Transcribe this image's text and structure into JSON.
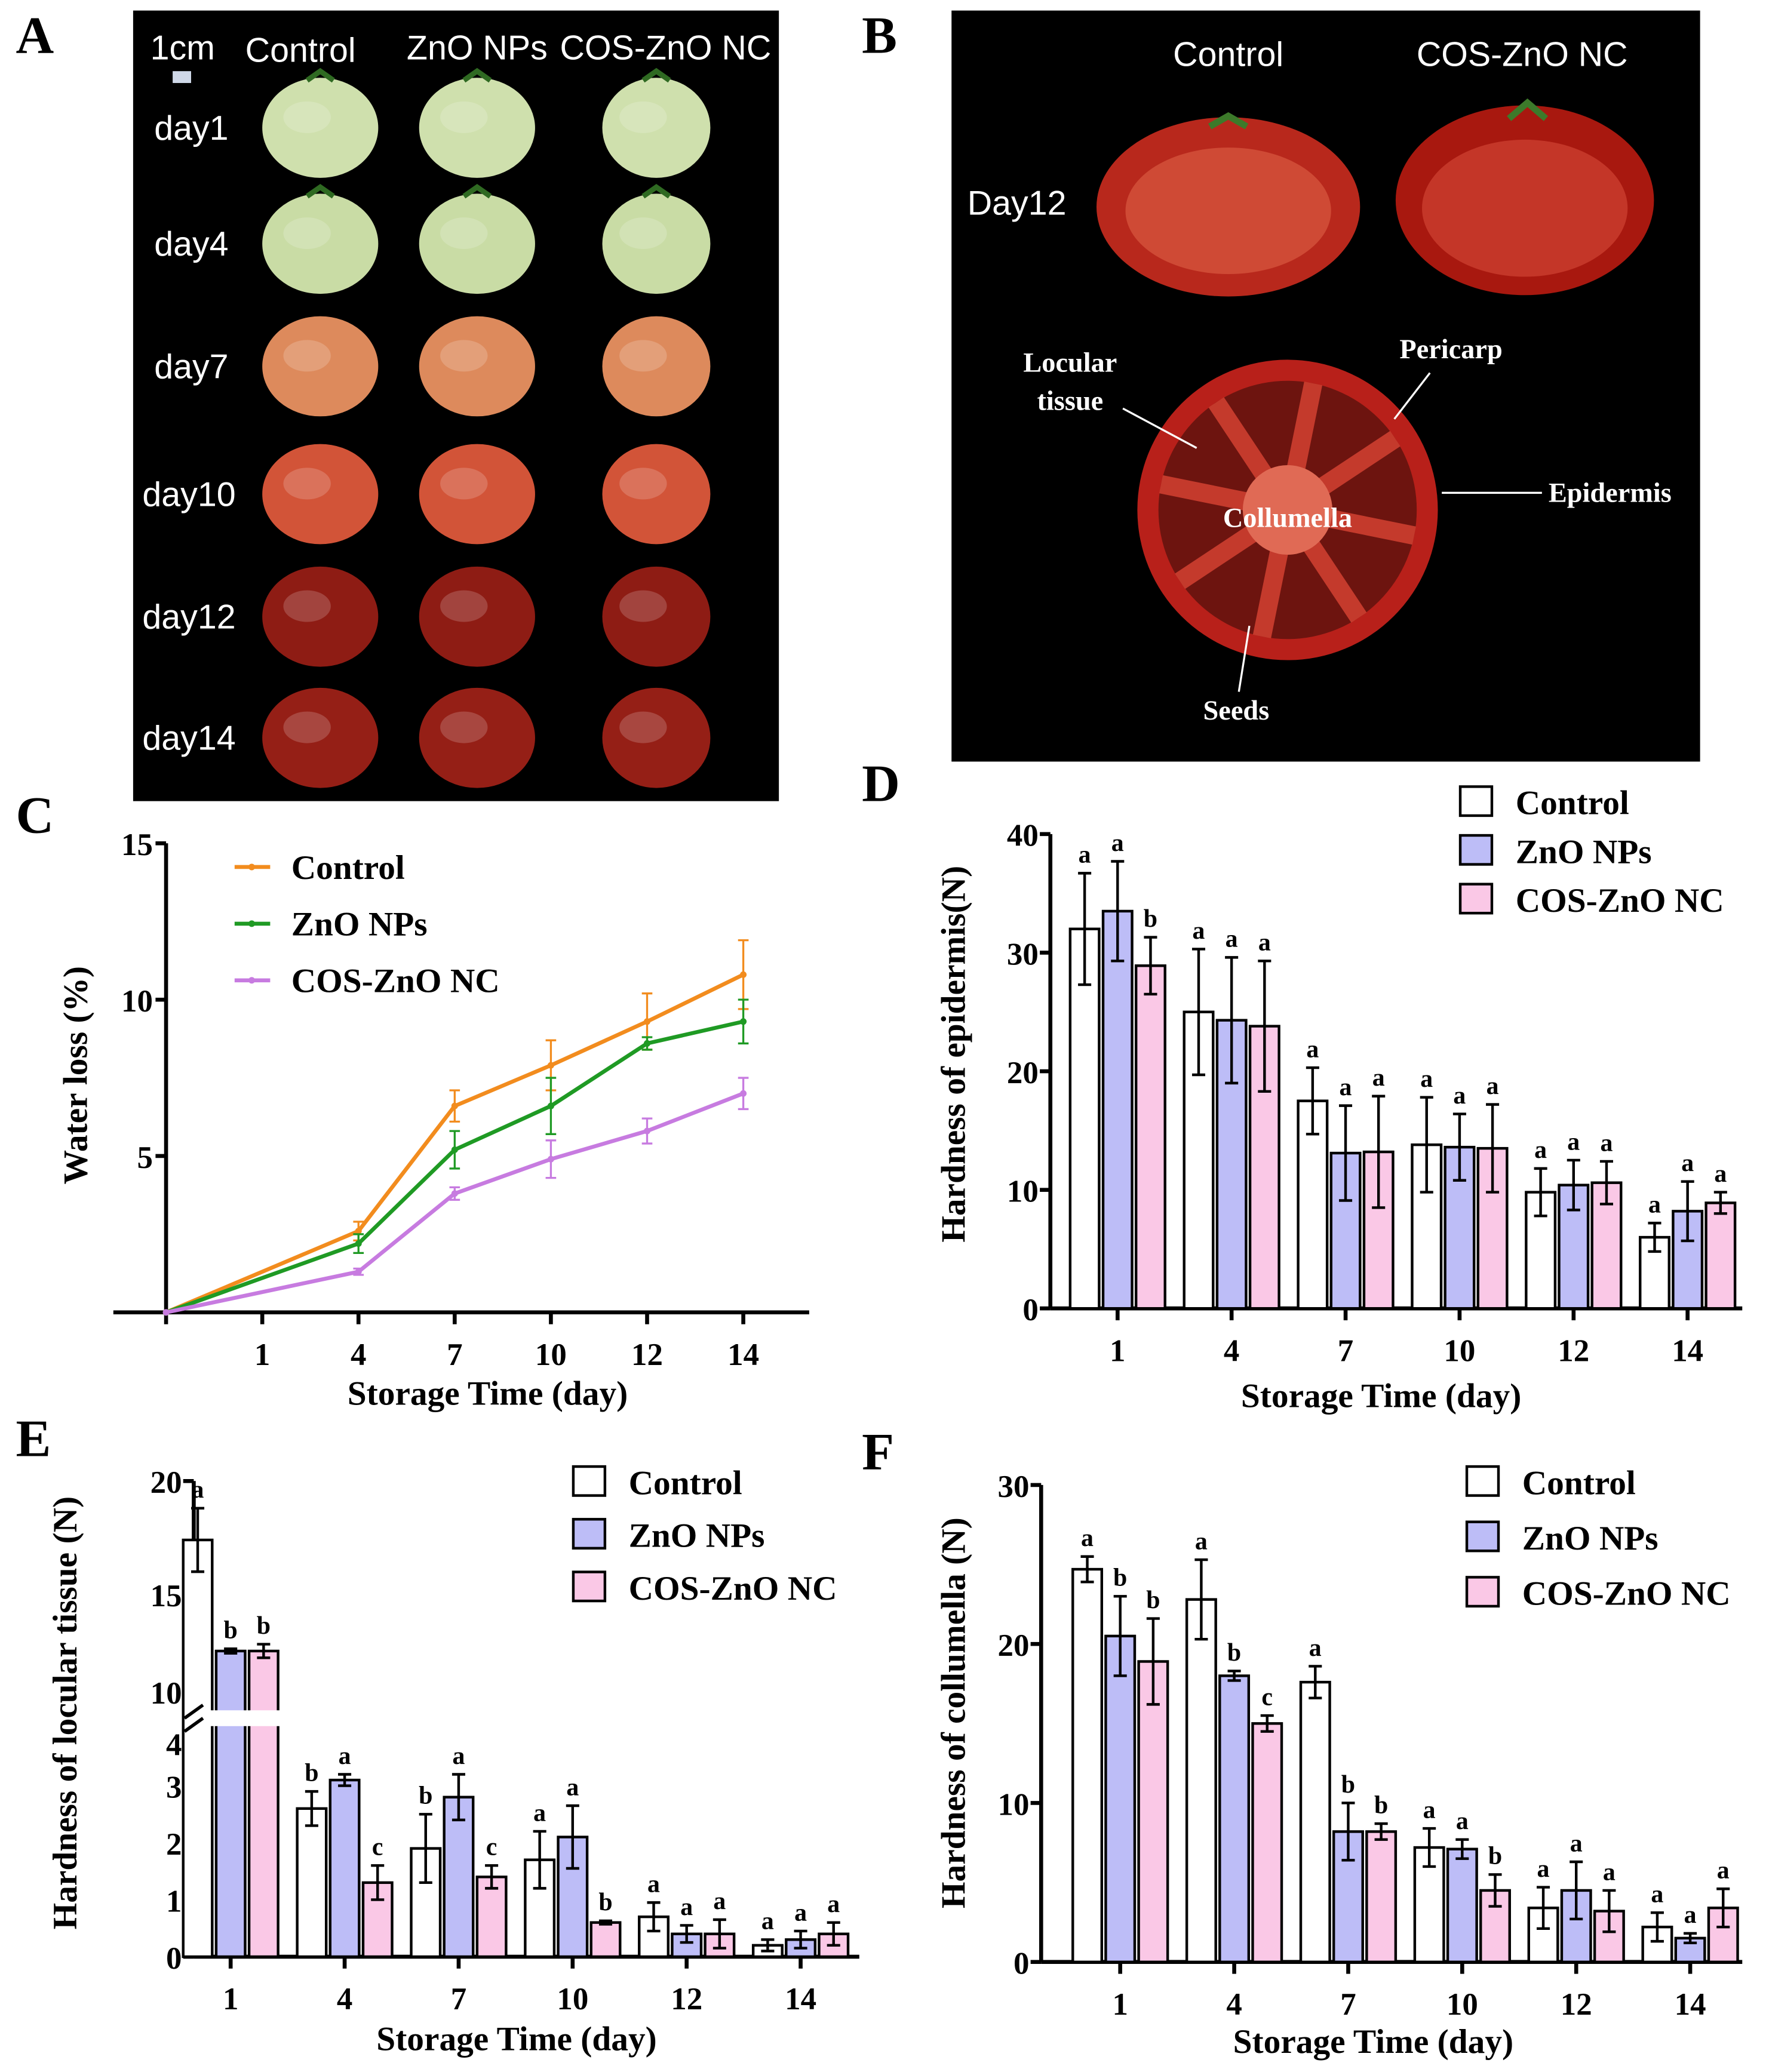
{
  "panels": {
    "A": {
      "letter": "A",
      "scale_label": "1cm",
      "columns": [
        "Control",
        "ZnO NPs",
        "COS-ZnO NC"
      ],
      "rows": [
        "day1",
        "day4",
        "day7",
        "day10",
        "day12",
        "day14"
      ],
      "fruit_colors": [
        "#cfe0ad",
        "#c9dca5",
        "#dd8a5c",
        "#d25438",
        "#8e1c14",
        "#951f16"
      ]
    },
    "B": {
      "letter": "B",
      "columns": [
        "Control",
        "COS-ZnO NC"
      ],
      "row_label": "Day12",
      "annotations": {
        "locular_1": "Locular",
        "locular_2": "tissue",
        "pericarp": "Pericarp",
        "epidermis": "Epidermis",
        "collumella": "Collumella",
        "seeds": "Seeds"
      }
    },
    "C": {
      "letter": "C"
    },
    "D": {
      "letter": "D"
    },
    "E": {
      "letter": "E"
    },
    "F": {
      "letter": "F"
    }
  },
  "colors": {
    "control_line": "#f28c1e",
    "zno_line": "#1f9a24",
    "cos_line": "#c77be0",
    "control_bar": "#ffffff",
    "zno_bar": "#bdbdf7",
    "cos_bar": "#fac8e6"
  },
  "chart_data": [
    {
      "panel": "C",
      "type": "line",
      "xlabel": "Storage Time (day)",
      "ylabel": "Water loss (%)",
      "categories": [
        "",
        "1",
        "4",
        "7",
        "10",
        "12",
        "14"
      ],
      "ylim": [
        0,
        15
      ],
      "yticks": [
        5,
        10,
        15
      ],
      "grid": false,
      "legend": "top-left",
      "series": [
        {
          "name": "Control",
          "values": [
            0,
            null,
            2.6,
            6.6,
            7.9,
            9.3,
            10.8
          ],
          "errors": [
            0,
            null,
            0.3,
            0.5,
            0.8,
            0.9,
            1.1
          ]
        },
        {
          "name": "ZnO NPs",
          "values": [
            0,
            null,
            2.2,
            5.2,
            6.6,
            8.6,
            9.3
          ],
          "errors": [
            0,
            null,
            0.3,
            0.6,
            0.9,
            0.2,
            0.7
          ]
        },
        {
          "name": "COS-ZnO NC",
          "values": [
            0,
            null,
            1.3,
            3.8,
            4.9,
            5.8,
            7.0
          ],
          "errors": [
            0,
            null,
            0.1,
            0.2,
            0.6,
            0.4,
            0.5
          ]
        }
      ]
    },
    {
      "panel": "D",
      "type": "bar",
      "xlabel": "Storage Time (day)",
      "ylabel": "Hardness of epidermis(N)",
      "categories": [
        "1",
        "4",
        "7",
        "10",
        "12",
        "14"
      ],
      "ylim": [
        0,
        40
      ],
      "yticks": [
        0,
        10,
        20,
        30,
        40
      ],
      "grid": false,
      "legend": "top-right",
      "series": [
        {
          "name": "Control",
          "values": [
            32.0,
            25.0,
            17.5,
            13.8,
            9.8,
            6.0
          ],
          "errors": [
            4.7,
            5.3,
            2.8,
            4.0,
            2.0,
            1.2
          ],
          "letters": [
            "a",
            "a",
            "a",
            "a",
            "a",
            "a"
          ]
        },
        {
          "name": "ZnO NPs",
          "values": [
            33.5,
            24.3,
            13.1,
            13.6,
            10.4,
            8.2
          ],
          "errors": [
            4.2,
            5.3,
            4.0,
            2.8,
            2.1,
            2.5
          ],
          "letters": [
            "a",
            "a",
            "a",
            "a",
            "a",
            "a"
          ]
        },
        {
          "name": "COS-ZnO NC",
          "values": [
            28.9,
            23.8,
            13.2,
            13.5,
            10.6,
            8.9
          ],
          "errors": [
            2.4,
            5.5,
            4.7,
            3.7,
            1.8,
            0.9
          ],
          "letters": [
            "b",
            "a",
            "a",
            "a",
            "a",
            "a"
          ]
        }
      ]
    },
    {
      "panel": "E",
      "type": "bar",
      "xlabel": "Storage Time (day)",
      "ylabel": "Hardness of locular tissue (N)",
      "categories": [
        "1",
        "4",
        "7",
        "10",
        "12",
        "14"
      ],
      "ylim": [
        0,
        20
      ],
      "axis_break": [
        4,
        10
      ],
      "yticks": [
        0,
        1,
        2,
        3,
        4,
        10,
        15,
        20
      ],
      "grid": false,
      "legend": "top-right",
      "series": [
        {
          "name": "Control",
          "values": [
            17.4,
            2.6,
            1.9,
            1.7,
            0.7,
            0.2
          ],
          "errors": [
            1.4,
            0.3,
            0.6,
            0.5,
            0.25,
            0.1
          ],
          "letters": [
            "a",
            "b",
            "b",
            "a",
            "a",
            "a"
          ]
        },
        {
          "name": "ZnO NPs",
          "values": [
            12.5,
            3.1,
            2.8,
            2.1,
            0.4,
            0.3
          ],
          "errors": [
            0.1,
            0.1,
            0.4,
            0.55,
            0.15,
            0.15
          ],
          "letters": [
            "b",
            "a",
            "a",
            "a",
            "a",
            "a"
          ]
        },
        {
          "name": "COS-ZnO NC",
          "values": [
            12.5,
            1.3,
            1.4,
            0.6,
            0.4,
            0.4
          ],
          "errors": [
            0.3,
            0.3,
            0.2,
            0.03,
            0.25,
            0.2
          ],
          "letters": [
            "b",
            "c",
            "c",
            "b",
            "a",
            "a"
          ]
        }
      ]
    },
    {
      "panel": "F",
      "type": "bar",
      "xlabel": "Storage Time (day)",
      "ylabel": "Hardness of collumella (N)",
      "categories": [
        "1",
        "4",
        "7",
        "10",
        "12",
        "14"
      ],
      "ylim": [
        0,
        30
      ],
      "yticks": [
        0,
        10,
        20,
        30
      ],
      "grid": false,
      "legend": "top-right",
      "series": [
        {
          "name": "Control",
          "values": [
            24.7,
            22.8,
            17.6,
            7.2,
            3.4,
            2.2
          ],
          "errors": [
            0.8,
            2.5,
            1.0,
            1.2,
            1.3,
            0.9
          ],
          "letters": [
            "a",
            "a",
            "a",
            "a",
            "a",
            "a"
          ]
        },
        {
          "name": "ZnO NPs",
          "values": [
            20.5,
            18.0,
            8.2,
            7.1,
            4.5,
            1.5
          ],
          "errors": [
            2.5,
            0.3,
            1.8,
            0.6,
            1.8,
            0.3
          ],
          "letters": [
            "b",
            "b",
            "b",
            "a",
            "a",
            "a"
          ]
        },
        {
          "name": "COS-ZnO NC",
          "values": [
            18.9,
            15.0,
            8.2,
            4.5,
            3.2,
            3.4
          ],
          "errors": [
            2.7,
            0.5,
            0.5,
            1.0,
            1.3,
            1.2
          ],
          "letters": [
            "b",
            "c",
            "b",
            "b",
            "a",
            "a"
          ]
        }
      ]
    }
  ]
}
